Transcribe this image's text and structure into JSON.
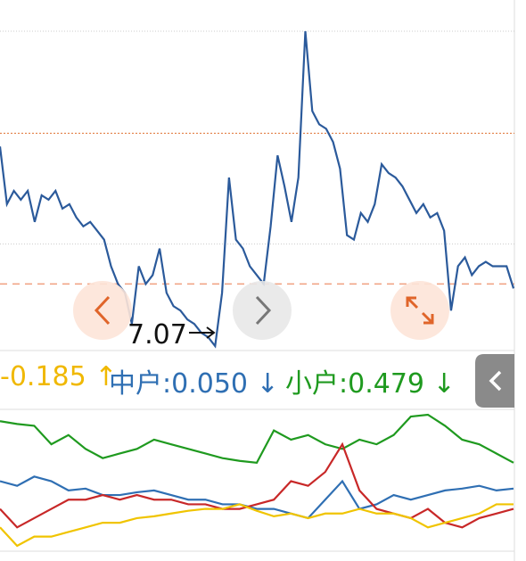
{
  "chart_data": [
    {
      "type": "line",
      "name": "price",
      "values": [
        7.52,
        7.39,
        7.42,
        7.4,
        7.42,
        7.35,
        7.41,
        7.4,
        7.42,
        7.38,
        7.39,
        7.36,
        7.34,
        7.35,
        7.33,
        7.31,
        7.25,
        7.21,
        7.19,
        7.12,
        7.25,
        7.21,
        7.23,
        7.29,
        7.19,
        7.16,
        7.15,
        7.13,
        7.12,
        7.1,
        7.09,
        7.07,
        7.19,
        7.45,
        7.31,
        7.29,
        7.25,
        7.23,
        7.21,
        7.34,
        7.5,
        7.43,
        7.35,
        7.45,
        7.78,
        7.6,
        7.57,
        7.56,
        7.53,
        7.47,
        7.32,
        7.31,
        7.37,
        7.35,
        7.39,
        7.48,
        7.46,
        7.45,
        7.43,
        7.4,
        7.37,
        7.39,
        7.36,
        7.37,
        7.33,
        7.15,
        7.25,
        7.27,
        7.23,
        7.25,
        7.26,
        7.25,
        7.25,
        7.25,
        7.2
      ],
      "color": "#2b5a9b",
      "gridlines": [
        7.78,
        7.3
      ],
      "ref_lines": [
        7.55,
        7.21
      ],
      "min_label": "7.07"
    },
    {
      "type": "line",
      "name": "flows",
      "legend": [
        {
          "text": "-0.185",
          "arrow": "↑",
          "color": "#f0b800"
        },
        {
          "text": "中户:0.050",
          "arrow": "↓",
          "color": "#2f6fb3"
        },
        {
          "text": "小户:0.479",
          "arrow": "↓",
          "color": "#1f9a1f"
        }
      ],
      "series": [
        {
          "color": "#1f9a1f",
          "values": [
            145,
            142,
            140,
            120,
            130,
            115,
            105,
            110,
            115,
            125,
            120,
            115,
            110,
            105,
            102,
            100,
            135,
            125,
            130,
            120,
            115,
            125,
            120,
            130,
            150,
            152,
            140,
            125,
            120,
            110,
            100
          ]
        },
        {
          "color": "#2f6fb3",
          "values": [
            80,
            75,
            85,
            80,
            70,
            72,
            65,
            65,
            68,
            70,
            65,
            60,
            60,
            55,
            55,
            50,
            50,
            45,
            40,
            60,
            80,
            50,
            55,
            65,
            60,
            65,
            70,
            72,
            75,
            70,
            72
          ]
        },
        {
          "color": "#c82828",
          "values": [
            50,
            30,
            40,
            50,
            60,
            60,
            65,
            60,
            65,
            60,
            60,
            55,
            55,
            50,
            50,
            55,
            60,
            80,
            75,
            90,
            120,
            70,
            50,
            45,
            40,
            50,
            35,
            30,
            40,
            45,
            50
          ]
        },
        {
          "color": "#f0c400",
          "values": [
            30,
            10,
            20,
            20,
            25,
            30,
            35,
            35,
            40,
            42,
            45,
            48,
            50,
            50,
            55,
            48,
            42,
            45,
            40,
            45,
            45,
            50,
            45,
            45,
            40,
            30,
            35,
            40,
            45,
            55,
            55
          ]
        }
      ]
    }
  ]
}
